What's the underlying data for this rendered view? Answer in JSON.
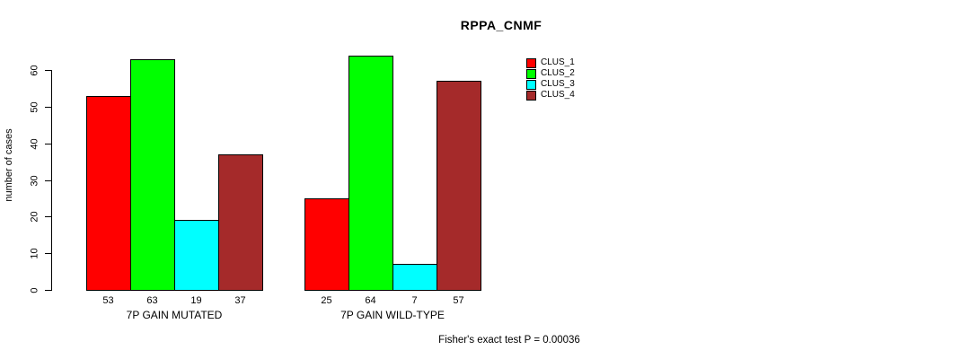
{
  "chart_data": {
    "type": "bar",
    "title": "RPPA_CNMF",
    "ylabel": "number of cases",
    "xlabel": "",
    "ylim": [
      0,
      60
    ],
    "yticks": [
      0,
      10,
      20,
      30,
      40,
      50,
      60
    ],
    "grid": false,
    "legend_position": "top-right",
    "categories": [
      "7P GAIN MUTATED",
      "7P GAIN WILD-TYPE"
    ],
    "series": [
      {
        "name": "CLUS_1",
        "color": "#FF0000",
        "values": [
          53,
          25
        ]
      },
      {
        "name": "CLUS_2",
        "color": "#00FF00",
        "values": [
          63,
          64
        ]
      },
      {
        "name": "CLUS_3",
        "color": "#00FFFF",
        "values": [
          19,
          7
        ]
      },
      {
        "name": "CLUS_4",
        "color": "#A52A2A",
        "values": [
          37,
          57
        ]
      }
    ],
    "bar_border_color": "#000000",
    "annotation": "Fisher's exact test P = 0.00036"
  }
}
